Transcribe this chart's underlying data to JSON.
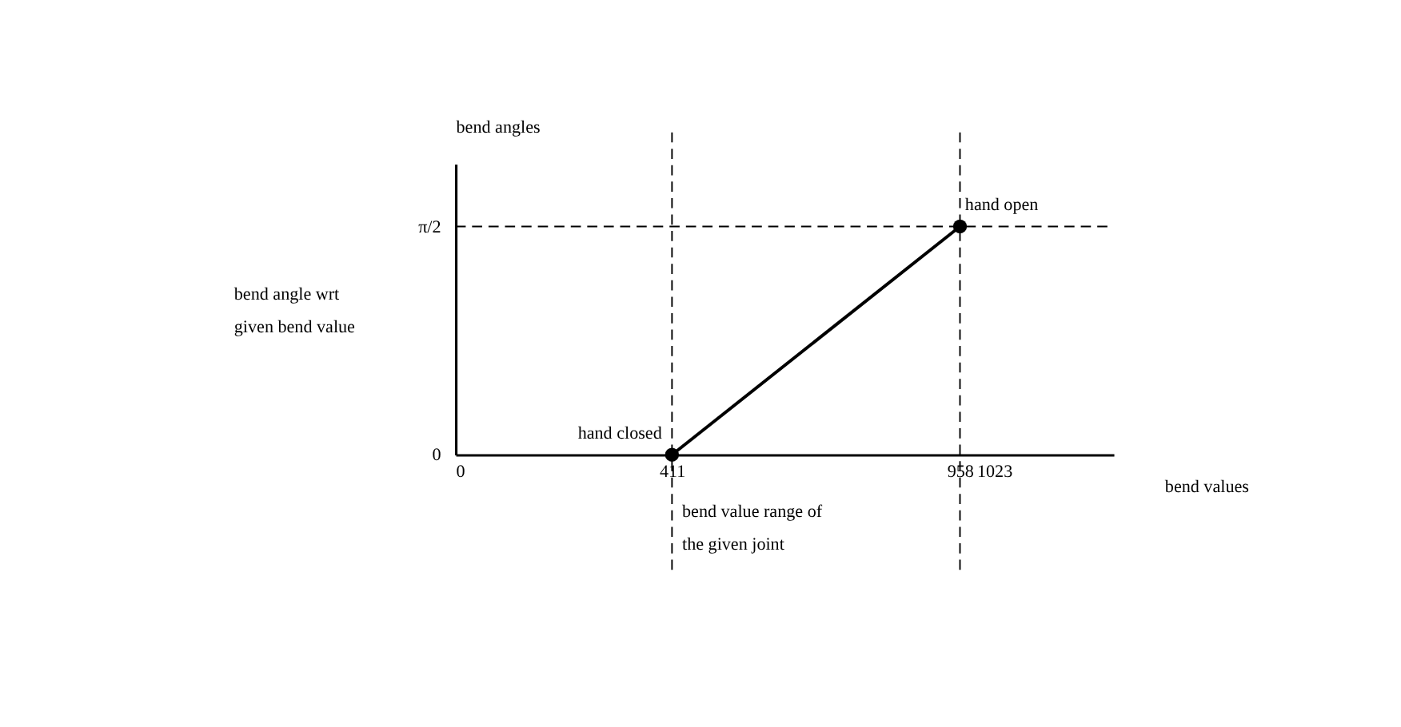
{
  "chart_data": {
    "type": "line",
    "xlabel": "bend values",
    "ylabel": "bend angles",
    "series": [
      {
        "color": "#000000",
        "x": [
          411,
          958
        ],
        "values": [
          0,
          1.57
        ]
      }
    ],
    "xlim": [
      0,
      1250
    ],
    "ylim": [
      0,
      2
    ],
    "xticks": [
      0,
      411,
      958,
      1023
    ],
    "yticks": [
      0,
      {
        "value": 1.57,
        "label": "π/2"
      }
    ],
    "ref_lines": [
      {
        "axis": "x",
        "value": 411,
        "line_style": "dashed"
      },
      {
        "axis": "x",
        "value": 958,
        "line_style": "dashed"
      },
      {
        "axis": "y",
        "value": 1.57,
        "line_style": "dashed"
      }
    ],
    "annotations": [
      {
        "text": "hand closed",
        "x": 411,
        "y": 0
      },
      {
        "text": "hand open",
        "x": 958,
        "y": 1.57
      },
      "bend angle wrt given bend value",
      "bend value range of the given joint"
    ],
    "marker": "circle",
    "line_style": "solid",
    "grid": false
  }
}
